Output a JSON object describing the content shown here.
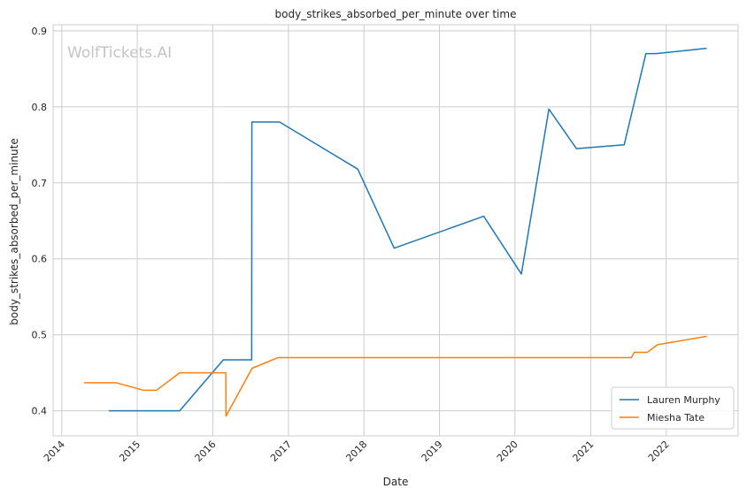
{
  "chart_data": {
    "type": "line",
    "title": "body_strikes_absorbed_per_minute over time",
    "xlabel": "Date",
    "ylabel": "body_strikes_absorbed_per_minute",
    "watermark": "WolfTickets.AI",
    "x_type": "date",
    "xlim": [
      "2013-11-20",
      "2022-12-15"
    ],
    "ylim": [
      0.367,
      0.908
    ],
    "x_ticks": [
      "2014-01-01",
      "2015-01-01",
      "2016-01-01",
      "2017-01-01",
      "2018-01-01",
      "2019-01-01",
      "2020-01-01",
      "2021-01-01",
      "2022-01-01"
    ],
    "x_tick_labels": [
      "2014",
      "2015",
      "2016",
      "2017",
      "2018",
      "2019",
      "2020",
      "2021",
      "2022"
    ],
    "y_ticks": [
      0.4,
      0.5,
      0.6,
      0.7,
      0.8,
      0.9
    ],
    "y_tick_labels": [
      "0.4",
      "0.5",
      "0.6",
      "0.7",
      "0.8",
      "0.9"
    ],
    "grid": true,
    "legend_position": "bottom-right",
    "series": [
      {
        "name": "Lauren Murphy",
        "color": "#1f77b4",
        "points": [
          [
            "2014-08-16",
            0.4
          ],
          [
            "2015-07-25",
            0.4
          ],
          [
            "2016-02-21",
            0.467
          ],
          [
            "2016-07-07",
            0.467
          ],
          [
            "2016-07-08",
            0.78
          ],
          [
            "2016-11-19",
            0.78
          ],
          [
            "2017-12-02",
            0.718
          ],
          [
            "2018-05-27",
            0.614
          ],
          [
            "2019-08-03",
            0.656
          ],
          [
            "2020-02-01",
            0.58
          ],
          [
            "2020-06-13",
            0.797
          ],
          [
            "2020-10-24",
            0.745
          ],
          [
            "2021-06-12",
            0.75
          ],
          [
            "2021-09-25",
            0.87
          ],
          [
            "2021-11-13",
            0.87
          ],
          [
            "2022-07-16",
            0.877
          ]
        ]
      },
      {
        "name": "Miesha Tate",
        "color": "#ff7f0e",
        "points": [
          [
            "2014-04-19",
            0.437
          ],
          [
            "2014-09-20",
            0.437
          ],
          [
            "2015-01-31",
            0.427
          ],
          [
            "2015-04-04",
            0.427
          ],
          [
            "2015-07-25",
            0.45
          ],
          [
            "2016-03-04",
            0.45
          ],
          [
            "2016-03-05",
            0.393
          ],
          [
            "2016-07-09",
            0.456
          ],
          [
            "2016-11-12",
            0.47
          ],
          [
            "2021-07-17",
            0.47
          ],
          [
            "2021-07-31",
            0.477
          ],
          [
            "2021-10-02",
            0.477
          ],
          [
            "2021-11-20",
            0.487
          ],
          [
            "2022-07-16",
            0.498
          ]
        ]
      }
    ]
  }
}
